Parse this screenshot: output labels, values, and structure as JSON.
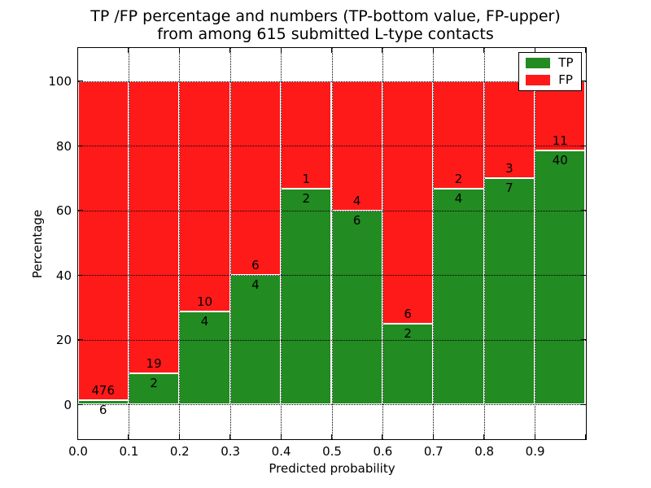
{
  "title": {
    "line1": "TP /FP percentage and numbers (TP-bottom value, FP-upper)",
    "line2": "from among 615 submitted L-type contacts"
  },
  "legend": {
    "position": "upper right",
    "items": [
      {
        "label": "TP",
        "color": "#228b22"
      },
      {
        "label": "FP",
        "color": "#ff1a1a"
      }
    ]
  },
  "chart_data": {
    "type": "bar",
    "stacked": true,
    "normalized": "percent",
    "title": "TP /FP percentage and numbers (TP-bottom value, FP-upper) from among 615 submitted L-type contacts",
    "xlabel": "Predicted probability",
    "ylabel": "Percentage",
    "bin_edges": [
      0.0,
      0.1,
      0.2,
      0.3,
      0.4,
      0.5,
      0.6,
      0.7,
      0.8,
      0.9,
      1.0
    ],
    "x_tick_labels": [
      "0.0",
      "0.1",
      "0.2",
      "0.3",
      "0.4",
      "0.5",
      "0.6",
      "0.7",
      "0.8",
      "0.9"
    ],
    "y_tick_values": [
      0,
      20,
      40,
      60,
      80,
      100
    ],
    "y_tick_labels": [
      "0",
      "20",
      "40",
      "60",
      "80",
      "100"
    ],
    "xlim": [
      0.0,
      1.0
    ],
    "ylim": [
      -11.3,
      110.7
    ],
    "grid": true,
    "grid_style": "dotted",
    "legend_position": "upper right",
    "series": [
      {
        "name": "TP",
        "color": "#228b22",
        "counts": [
          6,
          2,
          4,
          4,
          2,
          6,
          2,
          4,
          7,
          40
        ]
      },
      {
        "name": "FP",
        "color": "#ff1a1a",
        "counts": [
          476,
          19,
          10,
          6,
          1,
          4,
          6,
          2,
          3,
          11
        ]
      }
    ],
    "tp_percent": [
      1.24,
      9.52,
      28.57,
      40.0,
      66.67,
      60.0,
      25.0,
      66.67,
      70.0,
      78.43
    ],
    "total_contacts": 615
  }
}
